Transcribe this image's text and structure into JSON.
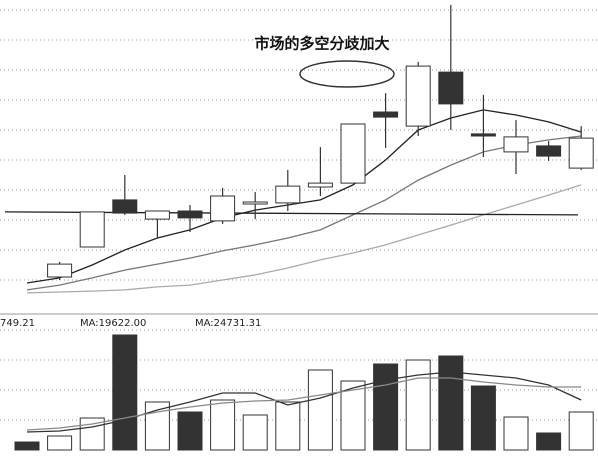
{
  "chart_data": {
    "type": "candlestick",
    "title": "市场的多空分歧加大",
    "ylim": [
      0,
      102
    ],
    "yticks": [
      10,
      20,
      30,
      40,
      50,
      60,
      70,
      80,
      90,
      100
    ],
    "grid": true,
    "open": [
      null,
      11,
      21,
      36.7,
      30.3,
      33,
      29.7,
      35.7,
      35.7,
      41,
      42.3,
      66,
      61.3,
      79.3,
      58.7,
      52.7,
      54.7,
      47.3
    ],
    "close": [
      null,
      15.3,
      32.7,
      32.3,
      33,
      30.7,
      38,
      36,
      41.3,
      42.3,
      62,
      64.3,
      81.3,
      68.7,
      58,
      57.7,
      51.3,
      57.3
    ],
    "high": [
      null,
      16,
      32.7,
      45,
      33,
      35,
      40.7,
      39.3,
      46.7,
      54.3,
      62,
      72.3,
      82.7,
      101.7,
      71.7,
      63.3,
      56.3,
      61.3
    ],
    "low": [
      null,
      10,
      21,
      31.7,
      24,
      26,
      28.7,
      30.3,
      33,
      38,
      42.3,
      54,
      58,
      60,
      51,
      45.3,
      49.7,
      46.7
    ],
    "series": [
      {
        "color": "#222222",
        "values": [
          9,
          10.7,
          15,
          20,
          24,
          26.7,
          30.7,
          33.3,
          35,
          36.7,
          41.7,
          50,
          60,
          64,
          66.7,
          65,
          62.7,
          59.3
        ]
      },
      {
        "color": "#777777",
        "values": [
          6.7,
          8.3,
          10.7,
          13.3,
          15.3,
          17.3,
          19.7,
          21.7,
          24,
          26.7,
          31.7,
          36.7,
          43.3,
          48.3,
          52.7,
          55,
          56.7,
          58
        ]
      },
      {
        "color": "#aaaaaa",
        "values": [
          5.7,
          6,
          6.3,
          6.7,
          7.7,
          8.3,
          10,
          11.7,
          14,
          16.7,
          19,
          21.7,
          25,
          28.3,
          31.7,
          35,
          38.3,
          41.7
        ]
      }
    ],
    "trend_line": {
      "color": "#222222",
      "values": [
        32.7,
        31.7
      ]
    },
    "volume": {
      "header": [
        "749.21",
        "MA:19622.00",
        "MA:24731.31"
      ],
      "ylim": [
        0,
        39600
      ],
      "yticks": [
        9000,
        18000,
        27000,
        36000
      ],
      "values": [
        2400,
        4200,
        9600,
        34500,
        14400,
        11400,
        15000,
        10500,
        14400,
        24000,
        20700,
        25800,
        27000,
        28200,
        19200,
        9900,
        5100,
        11400
      ],
      "colors": [
        "#333333",
        "#ffffff",
        "#ffffff",
        "#333333",
        "#ffffff",
        "#333333",
        "#ffffff",
        "#ffffff",
        "#ffffff",
        "#ffffff",
        "#ffffff",
        "#333333",
        "#ffffff",
        "#333333",
        "#333333",
        "#ffffff",
        "#333333",
        "#ffffff"
      ],
      "series": [
        {
          "color": "#333333",
          "values": [
            5400,
            5700,
            6900,
            9000,
            12000,
            14400,
            17100,
            17100,
            13500,
            15600,
            18600,
            21000,
            22500,
            23400,
            22500,
            21600,
            19500,
            15000
          ]
        },
        {
          "color": "#888888",
          "values": [
            6000,
            6600,
            7800,
            9600,
            11400,
            12900,
            14100,
            14700,
            15000,
            16500,
            18000,
            19500,
            21600,
            21600,
            20400,
            19500,
            18900,
            18900
          ]
        }
      ]
    }
  }
}
